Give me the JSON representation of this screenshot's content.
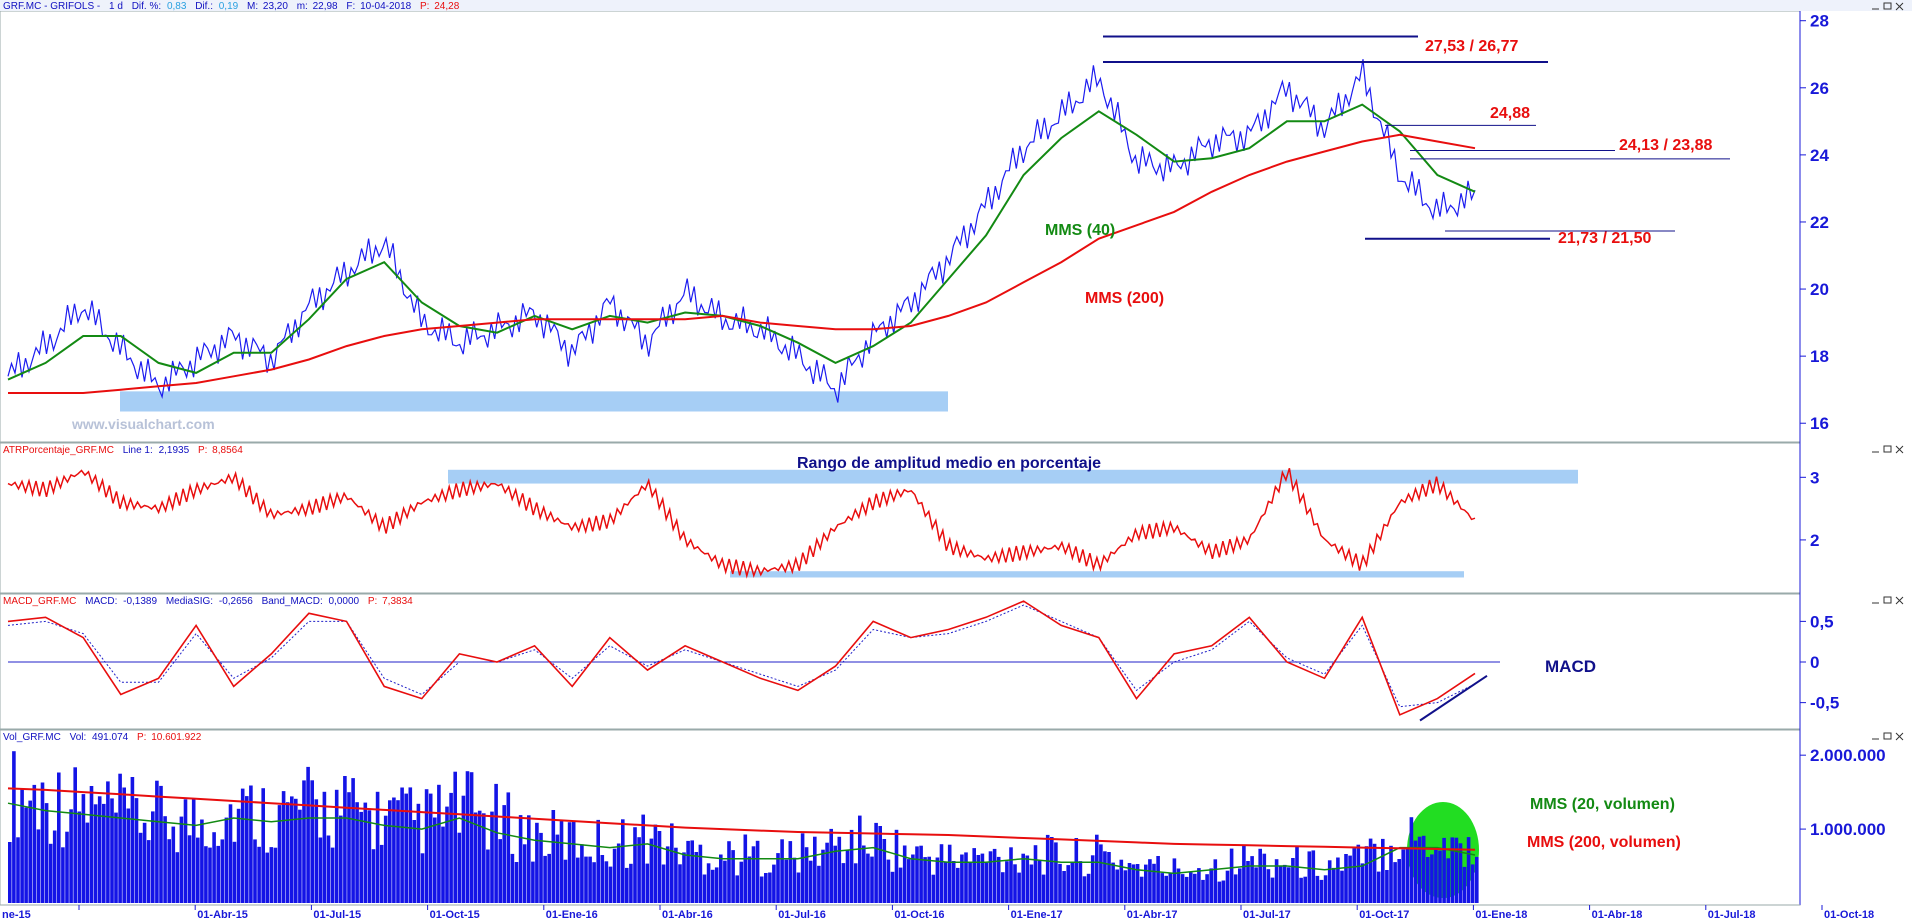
{
  "panels": {
    "price": {
      "header": {
        "symbol": "GRF.MC - GRIFOLS -",
        "period": "1 d",
        "dif_pct_label": "Dif. %:",
        "dif_pct_value": "0,83",
        "dif_label": "Dif.:",
        "dif_value": "0,19",
        "max_label": "M:",
        "max_value": "23,20",
        "min_label": "m:",
        "min_value": "22,98",
        "date_label": "F:",
        "date_value": "10-04-2018",
        "price_label": "P:",
        "price_value": "24,28"
      },
      "watermark": "www.visualchart.com",
      "labels": {
        "mms40": "MMS (40)",
        "mms200": "MMS (200)",
        "level1": "27,53 / 26,77",
        "level2": "24,88",
        "level3": "24,13 / 23,88",
        "level4": "21,73 / 21,50"
      },
      "y_ticks": [
        "28",
        "26",
        "24",
        "22",
        "20",
        "18",
        "16"
      ]
    },
    "atr": {
      "header": {
        "name": "ATRPorcentaje_GRF.MC",
        "line_label": "Line 1:",
        "line_value": "2,1935",
        "p_label": "P:",
        "p_value": "8,8564"
      },
      "title": "Rango de amplitud medio en porcentaje",
      "y_ticks": [
        "3",
        "2"
      ]
    },
    "macd": {
      "header": {
        "name": "MACD_GRF.MC",
        "macd_label": "MACD:",
        "macd_value": "-0,1389",
        "sig_label": "MediaSIG:",
        "sig_value": "-0,2656",
        "band_label": "Band_MACD:",
        "band_value": "0,0000",
        "p_label": "P:",
        "p_value": "7,3834"
      },
      "label": "MACD",
      "y_ticks": [
        "0,5",
        "0",
        "-0,5"
      ]
    },
    "volume": {
      "header": {
        "name": "Vol_GRF.MC",
        "vol_label": "Vol:",
        "vol_value": "491.074",
        "p_label": "P:",
        "p_value": "10.601.922"
      },
      "labels": {
        "mms20": "MMS (20, volumen)",
        "mms200": "MMS (200, volumen)"
      },
      "y_ticks": [
        "2.000.000",
        "1.000.000"
      ]
    }
  },
  "x_axis": [
    "ne-15",
    "01-Abr-15",
    "01-Jul-15",
    "01-Oct-15",
    "01-Ene-16",
    "01-Abr-16",
    "01-Jul-16",
    "01-Oct-16",
    "01-Ene-17",
    "01-Abr-17",
    "01-Jul-17",
    "01-Oct-17",
    "01-Ene-18",
    "01-Abr-18",
    "01-Jul-18",
    "01-Oct-18"
  ],
  "colors": {
    "price_series": "#1c1cf0",
    "mms40": "#138a13",
    "mms200": "#e80e0e",
    "atr": "#e80e0e",
    "macd": "#e80e0e",
    "signal": "#2020c8",
    "volume": "#1414e6",
    "vol_mms20": "#138a13",
    "vol_mms200": "#e80e0e",
    "highlight": "#a6cef5",
    "axis_text": "#1818d8",
    "annotation": "#e80e0e",
    "level_line": "#10108a"
  },
  "chart_data": [
    {
      "type": "line",
      "panel": "price",
      "x": [
        "2015-01",
        "2015-02",
        "2015-03",
        "2015-04",
        "2015-05",
        "2015-06",
        "2015-07",
        "2015-08",
        "2015-09",
        "2015-10",
        "2015-11",
        "2015-12",
        "2016-01",
        "2016-02",
        "2016-03",
        "2016-04",
        "2016-05",
        "2016-06",
        "2016-07",
        "2016-08",
        "2016-09",
        "2016-10",
        "2016-11",
        "2016-12",
        "2017-01",
        "2017-02",
        "2017-03",
        "2017-04",
        "2017-05",
        "2017-06",
        "2017-07",
        "2017-08",
        "2017-09",
        "2017-10",
        "2017-11",
        "2017-12",
        "2018-01",
        "2018-02",
        "2018-03",
        "2018-04"
      ],
      "series": [
        {
          "name": "GRF.MC",
          "values": [
            17.4,
            18.3,
            19.5,
            18.2,
            17.1,
            17.9,
            18.6,
            17.9,
            19.5,
            20.5,
            21.4,
            19.0,
            18.4,
            18.8,
            19.3,
            18.1,
            19.6,
            18.4,
            19.9,
            19.1,
            18.8,
            18.0,
            17.0,
            18.6,
            19.6,
            20.9,
            22.5,
            24.2,
            25.2,
            26.3,
            23.8,
            23.6,
            24.4,
            24.6,
            26.0,
            24.8,
            26.4,
            23.4,
            22.3,
            22.8
          ]
        },
        {
          "name": "MMS (40)",
          "values": [
            17.3,
            17.8,
            18.6,
            18.6,
            17.8,
            17.5,
            18.1,
            18.1,
            19.1,
            20.3,
            20.8,
            19.6,
            18.9,
            18.7,
            19.2,
            18.8,
            19.2,
            19.0,
            19.3,
            19.2,
            18.9,
            18.4,
            17.8,
            18.3,
            19.0,
            20.3,
            21.6,
            23.4,
            24.5,
            25.3,
            24.6,
            23.8,
            23.9,
            24.2,
            25.0,
            25.0,
            25.5,
            24.7,
            23.4,
            22.9
          ]
        },
        {
          "name": "MMS (200)",
          "values": [
            16.9,
            16.9,
            16.9,
            17.0,
            17.1,
            17.2,
            17.4,
            17.6,
            17.9,
            18.3,
            18.6,
            18.8,
            18.9,
            19.0,
            19.1,
            19.1,
            19.1,
            19.1,
            19.1,
            19.2,
            19.0,
            18.9,
            18.8,
            18.8,
            18.9,
            19.2,
            19.6,
            20.2,
            20.8,
            21.5,
            21.9,
            22.3,
            22.9,
            23.4,
            23.8,
            24.1,
            24.4,
            24.6,
            24.4,
            24.2
          ]
        }
      ],
      "ylim": [
        15.5,
        28.2
      ],
      "levels": [
        {
          "label": "27,53 / 26,77",
          "values": [
            27.53,
            26.77
          ]
        },
        {
          "label": "24,88",
          "values": [
            24.88
          ]
        },
        {
          "label": "24,13 / 23,88",
          "values": [
            24.13,
            23.88
          ]
        },
        {
          "label": "21,73 / 21,50",
          "values": [
            21.73,
            21.5
          ]
        }
      ],
      "support_zone": [
        16.35,
        16.95
      ]
    },
    {
      "type": "line",
      "panel": "atr",
      "x": [
        "2015-01",
        "2015-02",
        "2015-03",
        "2015-04",
        "2015-05",
        "2015-06",
        "2015-07",
        "2015-08",
        "2015-09",
        "2015-10",
        "2015-11",
        "2015-12",
        "2016-01",
        "2016-02",
        "2016-03",
        "2016-04",
        "2016-05",
        "2016-06",
        "2016-07",
        "2016-08",
        "2016-09",
        "2016-10",
        "2016-11",
        "2016-12",
        "2017-01",
        "2017-02",
        "2017-03",
        "2017-04",
        "2017-05",
        "2017-06",
        "2017-07",
        "2017-08",
        "2017-09",
        "2017-10",
        "2017-11",
        "2017-12",
        "2018-01",
        "2018-02",
        "2018-03",
        "2018-04"
      ],
      "series": [
        {
          "values": [
            2.9,
            2.8,
            3.1,
            2.6,
            2.5,
            2.8,
            3.0,
            2.4,
            2.5,
            2.7,
            2.2,
            2.6,
            2.8,
            2.9,
            2.5,
            2.2,
            2.3,
            2.9,
            2.0,
            1.6,
            1.5,
            1.6,
            2.2,
            2.6,
            2.8,
            1.9,
            1.7,
            1.8,
            1.9,
            1.6,
            2.1,
            2.2,
            1.8,
            2.0,
            3.1,
            2.0,
            1.6,
            2.6,
            2.9,
            2.3
          ]
        }
      ],
      "ylim": [
        1.2,
        3.5
      ],
      "zones": [
        [
          2.9,
          3.12
        ],
        [
          1.4,
          1.5
        ]
      ]
    },
    {
      "type": "line",
      "panel": "macd",
      "x": [
        "2015-01",
        "2015-02",
        "2015-03",
        "2015-04",
        "2015-05",
        "2015-06",
        "2015-07",
        "2015-08",
        "2015-09",
        "2015-10",
        "2015-11",
        "2015-12",
        "2016-01",
        "2016-02",
        "2016-03",
        "2016-04",
        "2016-05",
        "2016-06",
        "2016-07",
        "2016-08",
        "2016-09",
        "2016-10",
        "2016-11",
        "2016-12",
        "2017-01",
        "2017-02",
        "2017-03",
        "2017-04",
        "2017-05",
        "2017-06",
        "2017-07",
        "2017-08",
        "2017-09",
        "2017-10",
        "2017-11",
        "2017-12",
        "2018-01",
        "2018-02",
        "2018-03",
        "2018-04"
      ],
      "series": [
        {
          "name": "MACD",
          "values": [
            0.5,
            0.55,
            0.3,
            -0.4,
            -0.2,
            0.45,
            -0.3,
            0.1,
            0.6,
            0.5,
            -0.3,
            -0.45,
            0.1,
            0.0,
            0.2,
            -0.3,
            0.3,
            -0.1,
            0.2,
            0.0,
            -0.2,
            -0.35,
            -0.05,
            0.5,
            0.3,
            0.4,
            0.55,
            0.75,
            0.45,
            0.3,
            -0.45,
            0.1,
            0.2,
            0.55,
            0.0,
            -0.2,
            0.55,
            -0.65,
            -0.45,
            -0.14
          ]
        },
        {
          "name": "MediaSIG",
          "values": [
            0.45,
            0.5,
            0.35,
            -0.25,
            -0.25,
            0.35,
            -0.2,
            0.05,
            0.5,
            0.5,
            -0.2,
            -0.4,
            0.0,
            0.0,
            0.15,
            -0.2,
            0.2,
            -0.05,
            0.15,
            0.0,
            -0.15,
            -0.3,
            -0.1,
            0.4,
            0.3,
            0.35,
            0.5,
            0.7,
            0.5,
            0.3,
            -0.35,
            0.0,
            0.15,
            0.5,
            0.05,
            -0.15,
            0.45,
            -0.55,
            -0.5,
            -0.27
          ]
        }
      ],
      "ylim": [
        -0.8,
        0.8
      ]
    },
    {
      "type": "bar",
      "panel": "volume",
      "x": [
        "2015-01",
        "2015-02",
        "2015-03",
        "2015-04",
        "2015-05",
        "2015-06",
        "2015-07",
        "2015-08",
        "2015-09",
        "2015-10",
        "2015-11",
        "2015-12",
        "2016-01",
        "2016-02",
        "2016-03",
        "2016-04",
        "2016-05",
        "2016-06",
        "2016-07",
        "2016-08",
        "2016-09",
        "2016-10",
        "2016-11",
        "2016-12",
        "2017-01",
        "2017-02",
        "2017-03",
        "2017-04",
        "2017-05",
        "2017-06",
        "2017-07",
        "2017-08",
        "2017-09",
        "2017-10",
        "2017-11",
        "2017-12",
        "2018-01",
        "2018-02",
        "2018-03",
        "2018-04"
      ],
      "series": [
        {
          "name": "Vol",
          "values": [
            1500000,
            1400000,
            1300000,
            1200000,
            1150000,
            1100000,
            1250000,
            1200000,
            1300000,
            1250000,
            1150000,
            1100000,
            1300000,
            1100000,
            900000,
            850000,
            800000,
            900000,
            700000,
            650000,
            650000,
            650000,
            800000,
            850000,
            650000,
            600000,
            600000,
            700000,
            600000,
            650000,
            500000,
            450000,
            500000,
            600000,
            550000,
            500000,
            600000,
            900000,
            850000,
            700000
          ]
        },
        {
          "name": "MMS (20, volumen)",
          "values": [
            1350000,
            1250000,
            1200000,
            1150000,
            1100000,
            1050000,
            1150000,
            1100000,
            1150000,
            1150000,
            1050000,
            1000000,
            1150000,
            950000,
            850000,
            800000,
            750000,
            800000,
            650000,
            600000,
            600000,
            600000,
            700000,
            750000,
            600000,
            550000,
            550000,
            600000,
            550000,
            550000,
            450000,
            400000,
            450000,
            500000,
            500000,
            450000,
            500000,
            750000,
            750000,
            650000
          ]
        },
        {
          "name": "MMS (200, volumen)",
          "values": [
            1550000,
            1530000,
            1500000,
            1470000,
            1440000,
            1410000,
            1380000,
            1350000,
            1320000,
            1290000,
            1260000,
            1230000,
            1200000,
            1170000,
            1140000,
            1110000,
            1080000,
            1050000,
            1020000,
            1000000,
            980000,
            960000,
            950000,
            940000,
            930000,
            920000,
            900000,
            880000,
            860000,
            840000,
            820000,
            800000,
            790000,
            780000,
            770000,
            760000,
            750000,
            740000,
            730000,
            720000
          ]
        }
      ],
      "ylim": [
        0,
        2300000
      ]
    }
  ]
}
